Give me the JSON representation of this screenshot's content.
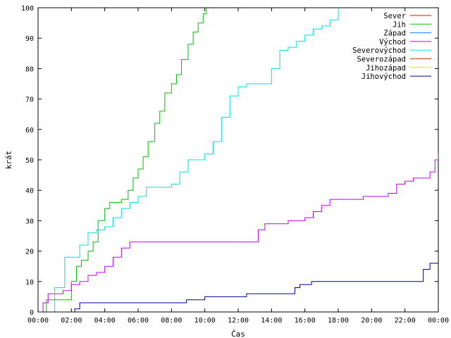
{
  "chart_data": {
    "type": "line",
    "title": "",
    "xlabel": "Čas",
    "ylabel": "krát",
    "xlim": [
      0,
      24
    ],
    "ylim": [
      0,
      100
    ],
    "grid": false,
    "legend_position": "top-right",
    "x_ticks": [
      "00:00",
      "02:00",
      "04:00",
      "06:00",
      "08:00",
      "10:00",
      "12:00",
      "14:00",
      "16:00",
      "18:00",
      "20:00",
      "22:00",
      "00:00"
    ],
    "y_ticks": [
      0,
      10,
      20,
      30,
      40,
      50,
      60,
      70,
      80,
      90,
      100
    ],
    "series": [
      {
        "name": "Sever",
        "color": "#ff0000",
        "x": [],
        "y": []
      },
      {
        "name": "Jih",
        "color": "#00c000",
        "x": [
          0.0,
          0.5,
          1.0,
          1.7,
          2.0,
          2.3,
          2.6,
          3.0,
          3.3,
          3.6,
          4.0,
          4.3,
          4.6,
          5.0,
          5.4,
          5.7,
          6.0,
          6.3,
          6.6,
          7.0,
          7.3,
          7.6,
          8.0,
          8.3,
          8.6,
          9.0,
          9.3,
          9.6,
          9.9,
          10.1
        ],
        "y": [
          0,
          4,
          4,
          4,
          10,
          15,
          17,
          20,
          23,
          30,
          34,
          36,
          36,
          37,
          40,
          44,
          47,
          51,
          56,
          62,
          66,
          72,
          75,
          78,
          83,
          88,
          92,
          95,
          98,
          100
        ]
      },
      {
        "name": "Západ",
        "color": "#0080ff",
        "x": [],
        "y": []
      },
      {
        "name": "Východ",
        "color": "#c000ff",
        "x": [
          0.0,
          0.3,
          0.6,
          1.0,
          1.5,
          2.0,
          2.5,
          3.0,
          3.5,
          4.0,
          4.5,
          5.0,
          5.5,
          6.0,
          7.0,
          8.0,
          9.0,
          10.0,
          11.0,
          12.0,
          12.9,
          13.2,
          13.6,
          14.0,
          14.5,
          15.0,
          15.5,
          16.0,
          16.5,
          17.0,
          17.5,
          18.0,
          18.5,
          19.0,
          19.5,
          20.0,
          20.5,
          21.0,
          21.5,
          22.0,
          22.5,
          23.0,
          23.5,
          23.8,
          24.0
        ],
        "y": [
          0,
          3,
          6,
          6,
          7,
          9,
          10,
          12,
          13,
          15,
          18,
          21,
          23,
          23,
          23,
          23,
          23,
          23,
          23,
          23,
          23,
          27,
          29,
          29,
          29,
          30,
          30,
          31,
          33,
          35,
          37,
          37,
          37,
          37,
          38,
          38,
          38,
          39,
          42,
          43,
          44,
          44,
          46,
          50,
          52
        ]
      },
      {
        "name": "Severovýchod",
        "color": "#00e0e0",
        "x": [
          0.0,
          0.7,
          1.0,
          1.6,
          2.0,
          2.5,
          3.0,
          3.5,
          4.0,
          4.5,
          5.0,
          5.5,
          6.0,
          6.5,
          7.0,
          7.5,
          8.0,
          8.5,
          9.0,
          9.5,
          10.0,
          10.5,
          11.0,
          11.5,
          12.0,
          12.5,
          13.0,
          13.5,
          14.0,
          14.5,
          15.0,
          15.5,
          16.0,
          16.5,
          17.0,
          17.5,
          18.0
        ],
        "y": [
          0,
          0,
          8,
          18,
          18,
          22,
          26,
          27,
          28,
          31,
          34,
          36,
          38,
          41,
          41,
          41,
          42,
          46,
          50,
          50,
          52,
          56,
          64,
          71,
          74,
          75,
          75,
          75,
          80,
          86,
          87,
          89,
          91,
          93,
          94,
          96,
          100
        ]
      },
      {
        "name": "Severozápad",
        "color": "#c04000",
        "x": [],
        "y": []
      },
      {
        "name": "Jihozápad",
        "color": "#e0e000",
        "x": [],
        "y": []
      },
      {
        "name": "Jihovýchod",
        "color": "#0000a0",
        "x": [
          0.0,
          2.0,
          2.2,
          2.5,
          3.0,
          4.0,
          5.0,
          6.0,
          7.0,
          8.0,
          8.5,
          8.9,
          9.5,
          10.0,
          11.0,
          12.0,
          12.5,
          13.0,
          14.0,
          15.0,
          15.4,
          15.7,
          16.0,
          16.4,
          17.0,
          18.0,
          19.0,
          20.0,
          21.0,
          22.0,
          22.9,
          23.1,
          23.5,
          24.0
        ],
        "y": [
          0,
          0,
          1,
          3,
          3,
          3,
          3,
          3,
          3,
          3,
          3,
          4,
          4,
          5,
          5,
          5,
          6,
          6,
          6,
          6,
          8,
          9,
          9,
          10,
          10,
          10,
          10,
          10,
          10,
          10,
          10,
          14,
          16,
          16
        ]
      }
    ]
  }
}
